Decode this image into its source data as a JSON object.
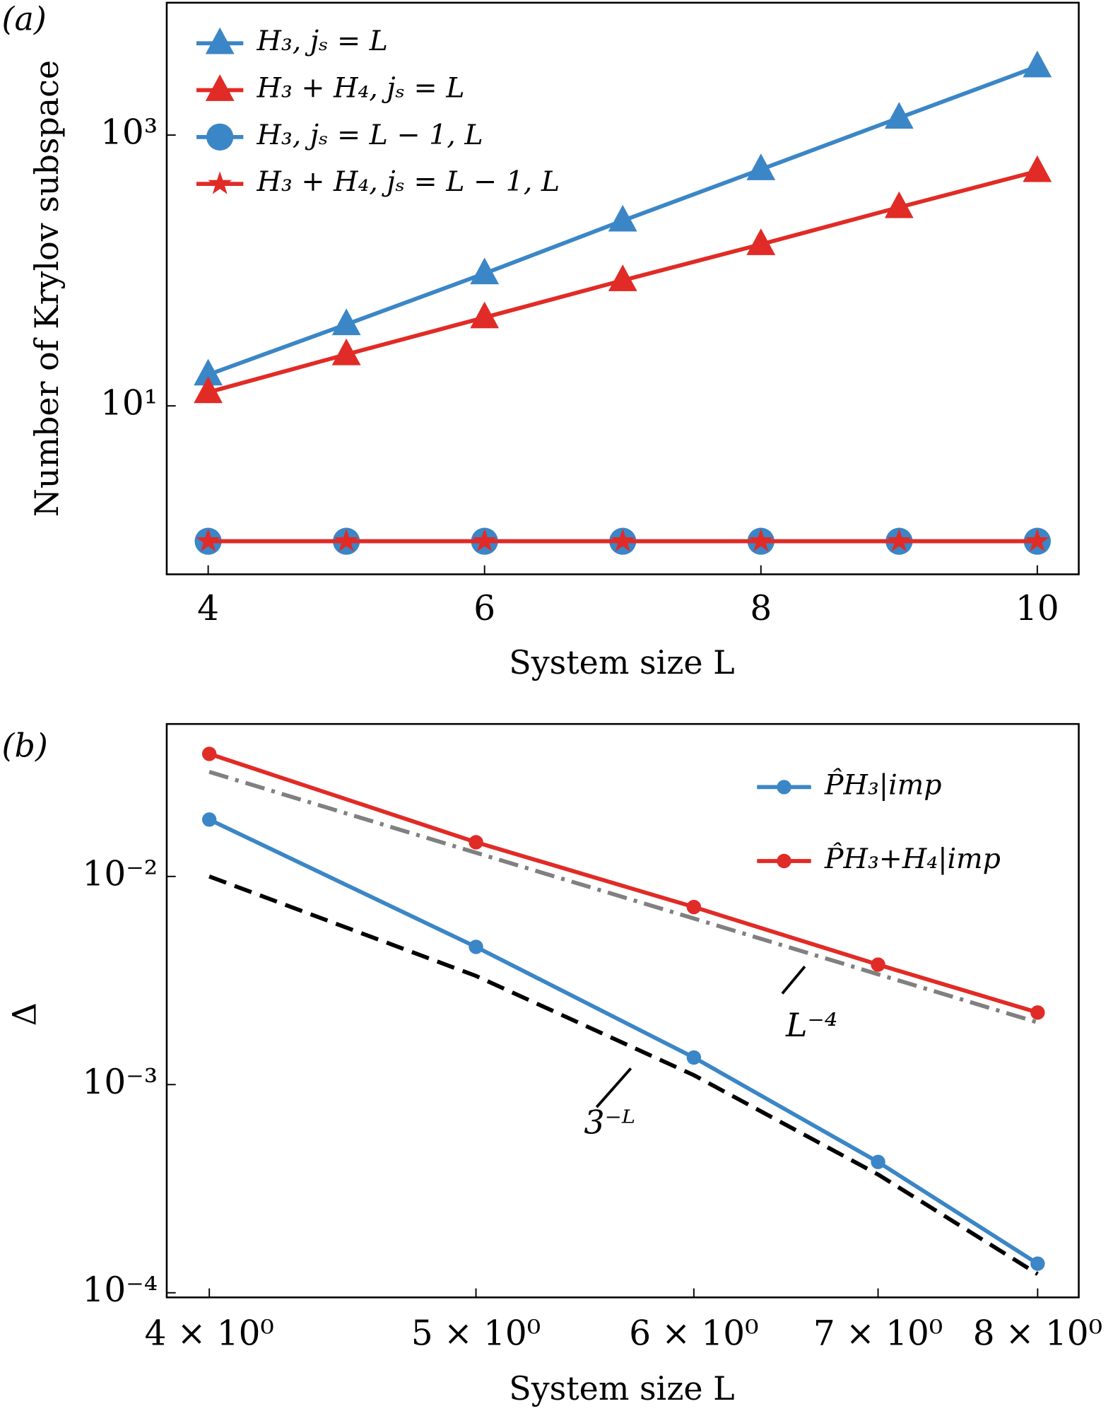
{
  "chart_data": [
    {
      "type": "line",
      "panel_label": "(a)",
      "xlabel": "System size L",
      "ylabel": "Number of Krylov subspace",
      "x": [
        4,
        5,
        6,
        7,
        8,
        9,
        10
      ],
      "series": [
        {
          "name": "H₃, jₛ = L",
          "color": "#3b86c6",
          "marker": "triangle",
          "values": [
            17,
            40,
            95,
            233,
            558,
            1340,
            3210
          ]
        },
        {
          "name": "H₃ + H₄, jₛ = L",
          "color": "#e12b26",
          "marker": "triangle",
          "values": [
            12.6,
            24,
            45,
            84.5,
            156,
            293,
            541
          ]
        },
        {
          "name": "H₃, jₛ = L − 1, L",
          "color": "#3b86c6",
          "marker": "circle",
          "values": [
            1,
            1,
            1,
            1,
            1,
            1,
            1
          ]
        },
        {
          "name": "H₃ + H₄, jₛ = L − 1, L",
          "color": "#e12b26",
          "marker": "star",
          "values": [
            1,
            1,
            1,
            1,
            1,
            1,
            1
          ]
        }
      ],
      "xlim": [
        3.7,
        10.3
      ],
      "ylim": [
        0.57,
        9500
      ],
      "yscale": "log",
      "xticks": [
        4,
        6,
        8,
        10
      ],
      "yticks": [
        {
          "value": 10,
          "label": "10¹"
        },
        {
          "value": 1000,
          "label": "10³"
        }
      ],
      "legend": "upper left"
    },
    {
      "type": "line",
      "panel_label": "(b)",
      "xlabel": "System size L",
      "ylabel": "Δ",
      "x": [
        4,
        5,
        6,
        7,
        8
      ],
      "series": [
        {
          "name": "P̂H₃|imp",
          "color": "#3b86c6",
          "marker": "circle",
          "values": [
            0.01876,
            0.00459,
            0.00135,
            0.000425,
            0.000138
          ]
        },
        {
          "name": "P̂H₃+H₄|imp",
          "color": "#e12b26",
          "marker": "circle",
          "values": [
            0.0388,
            0.0146,
            0.00713,
            0.00377,
            0.00222
          ]
        }
      ],
      "guides": [
        {
          "label": "L⁻⁴",
          "color": "#808080",
          "style": "dashdot",
          "values": [
            0.0318,
            0.013,
            0.00628,
            0.00339,
            0.00199
          ]
        },
        {
          "label": "3⁻ᴸ",
          "color": "#000000",
          "style": "dashed",
          "values": [
            0.01,
            0.00333,
            0.00111,
            0.00037,
            0.000123
          ]
        }
      ],
      "xlim": [
        3.86,
        8.28
      ],
      "ylim": [
        9.5e-05,
        0.054
      ],
      "xscale": "log",
      "yscale": "log",
      "xticks": [
        {
          "value": 4,
          "label": "4 × 10⁰"
        },
        {
          "value": 5,
          "label": "5 × 10⁰"
        },
        {
          "value": 6,
          "label": "6 × 10⁰"
        },
        {
          "value": 7,
          "label": "7 × 10⁰"
        },
        {
          "value": 8,
          "label": "8 × 10⁰"
        }
      ],
      "yticks": [
        {
          "value": 0.01,
          "label": "10⁻²"
        },
        {
          "value": 0.001,
          "label": "10⁻³"
        },
        {
          "value": 0.0001,
          "label": "10⁻⁴"
        }
      ],
      "legend": "upper right"
    }
  ]
}
